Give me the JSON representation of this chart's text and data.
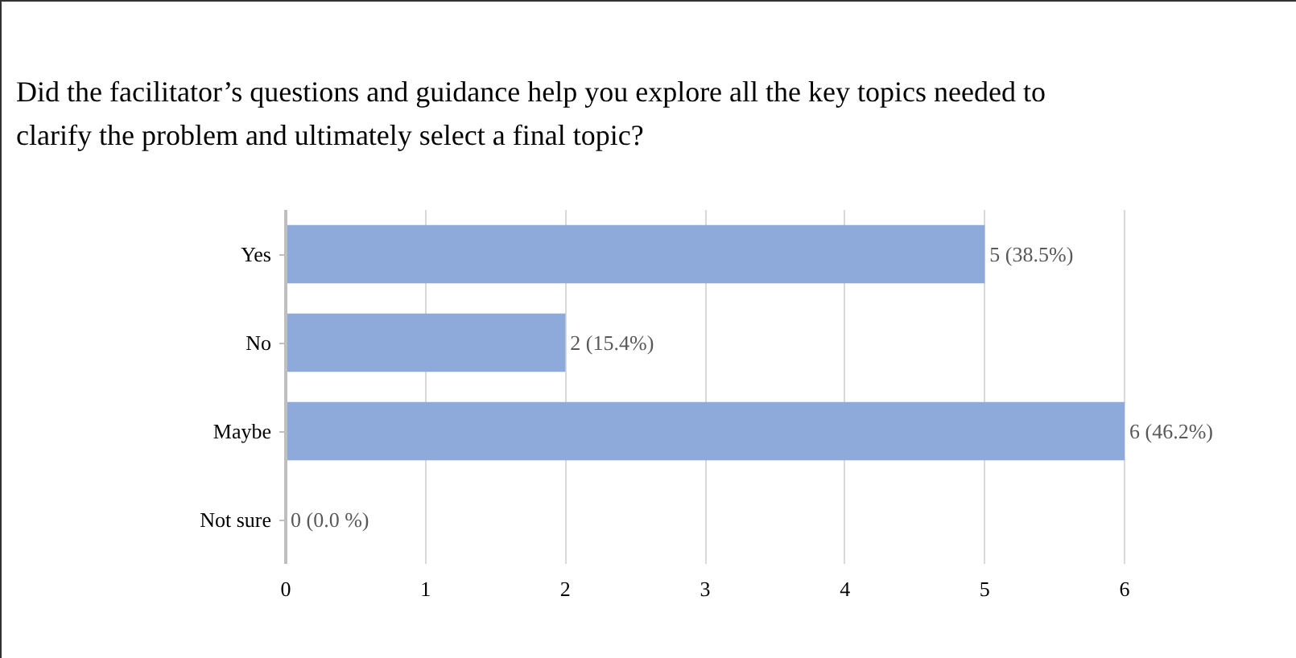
{
  "chart_data": {
    "type": "bar",
    "orientation": "horizontal",
    "title": "Did the facilitator’s questions and guidance help you explore all the key topics needed to clarify the problem and ultimately select a final topic?",
    "categories": [
      "Yes",
      "No",
      "Maybe",
      "Not sure"
    ],
    "values": [
      5,
      2,
      6,
      0
    ],
    "color": "#8eaadb",
    "value_labels": [
      "5 (38.5%)",
      "2 (15.4%)",
      "6 (46.2%)",
      "0 (0.0 %)"
    ],
    "xlim": [
      0,
      6
    ],
    "xticks": [
      0,
      1,
      2,
      3,
      4,
      5,
      6
    ],
    "grid": "x"
  }
}
